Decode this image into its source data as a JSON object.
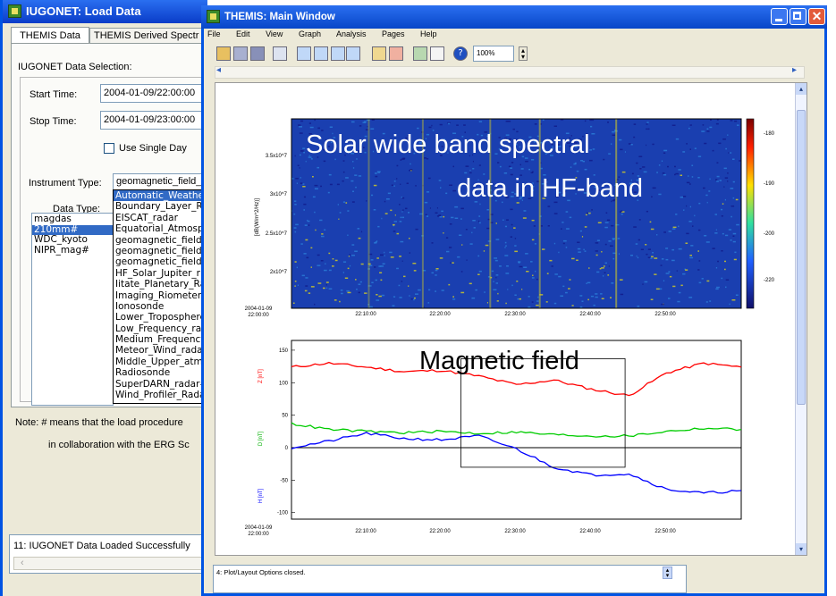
{
  "load_window": {
    "title": "IUGONET: Load Data",
    "tabs": [
      "THEMIS Data",
      "THEMIS Derived Spectr"
    ],
    "section_label": "IUGONET Data Selection:",
    "start_time_label": "Start Time:",
    "start_time_value": "2004-01-09/22:00:00",
    "stop_time_label": "Stop Time:",
    "stop_time_value": "2004-01-09/23:00:00",
    "single_day_label": "Use Single Day",
    "instrument_label": "Instrument Type:",
    "instrument_value": "geomagnetic_field_",
    "data_type_label": "Data Type:",
    "instrument_options": [
      "Automatic_Weather",
      "Boundary_Layer_Ra",
      "EISCAT_radar",
      "Equatorial_Atmosph",
      "geomagnetic_field_",
      "geomagnetic_field_",
      "geomagnetic_field_",
      "HF_Solar_Jupiter_r",
      "Iitate_Planetary_Ra",
      "Imaging_Riometer",
      "Ionosonde",
      "Lower_Troposphere",
      "Low_Frequency_rad",
      "Medium_Frequency",
      "Meteor_Wind_radar",
      "Middle_Upper_atmo",
      "Radiosonde",
      "SuperDARN_radar#",
      "Wind_Profiler_Rada"
    ],
    "data_types": [
      "magdas",
      "210mm#",
      "WDC_kyoto",
      "NIPR_mag#"
    ],
    "note_line1": "Note: # means that the load procedure",
    "note_line2": "in collaboration with the ERG Sc",
    "status": "11: IUGONET Data Loaded Successfully"
  },
  "main_window": {
    "title": "THEMIS: Main Window",
    "menu": [
      "File",
      "Edit",
      "View",
      "Graph",
      "Analysis",
      "Pages",
      "Help"
    ],
    "zoom": "100%",
    "status": "4: Plot/Layout Options closed."
  },
  "annotations": {
    "spectral_line1": "Solar wide band spectral",
    "spectral_line2": "data in HF-band",
    "magnetic": "Magnetic field"
  },
  "chart_data": [
    {
      "type": "heatmap",
      "title": "",
      "x_tick_labels": [
        "22:10:00",
        "22:20:00",
        "22:30:00",
        "22:40:00",
        "22:50:00"
      ],
      "x_start_label": [
        "2004-01-09",
        "22:00:00"
      ],
      "ylabel": "[dB(W/m^2/Hz)]",
      "y_tick_labels": [
        "3.5x10^7",
        "3x10^7",
        "2.5x10^7",
        "2x10^7"
      ],
      "colorbar_ticks": [
        "-180",
        "-190",
        "-200",
        "-220"
      ],
      "colors": {
        "low": "#101a8a",
        "mid": "#2a7ed8",
        "high": "#d8d020"
      }
    },
    {
      "type": "line",
      "title": "",
      "x_tick_labels": [
        "22:10:00",
        "22:20:00",
        "22:30:00",
        "22:40:00",
        "22:50:00"
      ],
      "x_start_label": [
        "2004-01-09",
        "22:00:00"
      ],
      "y_tick_labels": [
        "150",
        "100",
        "50",
        "0",
        "-50",
        "-100"
      ],
      "ylim": [
        -110,
        165
      ],
      "xlim": [
        0,
        60
      ],
      "y_axis_labels": [
        "Z [nT]",
        "D [nT]",
        "H [nT]"
      ],
      "series": [
        {
          "color": "#ff0000",
          "x": [
            0,
            5,
            10,
            15,
            20,
            25,
            30,
            35,
            40,
            45,
            50,
            55,
            60
          ],
          "values": [
            124,
            130,
            124,
            117,
            119,
            110,
            97,
            104,
            90,
            80,
            115,
            130,
            124
          ]
        },
        {
          "color": "#00cc00",
          "x": [
            0,
            5,
            10,
            15,
            20,
            25,
            30,
            35,
            40,
            45,
            50,
            55,
            60
          ],
          "values": [
            37,
            28,
            25,
            23,
            25,
            22,
            24,
            20,
            18,
            18,
            25,
            30,
            28
          ]
        },
        {
          "color": "#0000ff",
          "x": [
            0,
            5,
            10,
            15,
            20,
            25,
            30,
            35,
            40,
            45,
            50,
            55,
            60
          ],
          "values": [
            0,
            10,
            22,
            14,
            12,
            18,
            -2,
            -30,
            -42,
            -40,
            -64,
            -70,
            -66
          ]
        }
      ],
      "zero_line": 0,
      "highlight_box": {
        "x": [
          22.6,
          44.5
        ],
        "y": [
          -30,
          137
        ]
      }
    }
  ]
}
